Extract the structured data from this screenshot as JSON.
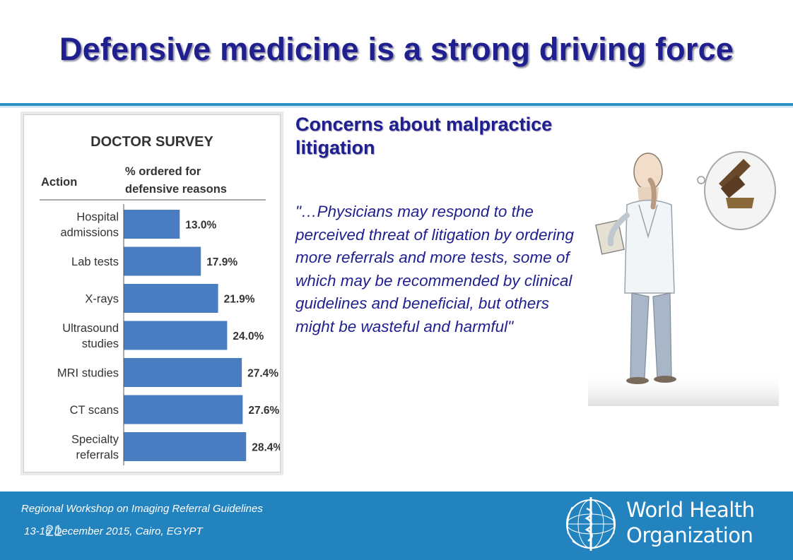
{
  "slide": {
    "title": "Defensive medicine is a strong driving force",
    "subheading": "Concerns about malpractice litigation",
    "quote": "\"…Physicians may respond to the perceived threat of litigation by ordering more referrals and more tests, some of which may be recommended by clinical guidelines and beneficial, but others might be wasteful and harmful\"",
    "page_number": "21"
  },
  "footer": {
    "event": "Regional Workshop on Imaging Referral Guidelines",
    "dates": "13-16 December 2015, Cairo, EGYPT",
    "org_line1": "World Health",
    "org_line2": "Organization",
    "color": "#2283bf"
  },
  "chart_data": {
    "type": "bar",
    "orientation": "horizontal",
    "title": "DOCTOR SURVEY",
    "category_header": "Action",
    "value_header": "% ordered for defensive reasons",
    "categories": [
      [
        "Hospital",
        "admissions"
      ],
      [
        "Lab tests"
      ],
      [
        "X-rays"
      ],
      [
        "Ultrasound",
        "studies"
      ],
      [
        "MRI studies"
      ],
      [
        "CT scans"
      ],
      [
        "Specialty",
        "referrals"
      ]
    ],
    "values": [
      13.0,
      17.9,
      21.9,
      24.0,
      27.4,
      27.6,
      28.4
    ],
    "value_labels": [
      "13.0%",
      "17.9%",
      "21.9%",
      "24.0%",
      "27.4%",
      "27.6%",
      "28.4%"
    ],
    "bar_color": "#4a7cc1",
    "xlim": [
      0,
      30
    ],
    "grid": false
  }
}
